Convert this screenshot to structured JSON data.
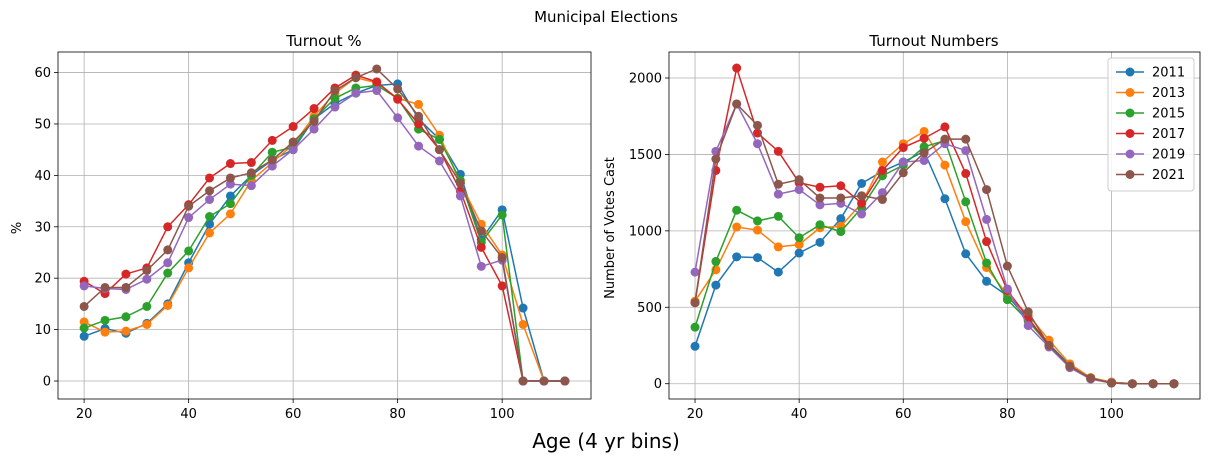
{
  "figure": {
    "suptitle": "Municipal Elections",
    "supxlabel": "Age (4 yr bins)"
  },
  "series_colors": [
    "#1f77b4",
    "#ff7f0e",
    "#2ca02c",
    "#d62728",
    "#9467bd",
    "#8c564b"
  ],
  "chart_data": [
    {
      "type": "line",
      "title": "Turnout %",
      "xlabel": "",
      "ylabel": "%",
      "xlim": [
        15,
        117
      ],
      "ylim": [
        -3.5,
        64
      ],
      "xticks": [
        20,
        40,
        60,
        80,
        100
      ],
      "yticks": [
        0,
        10,
        20,
        30,
        40,
        50,
        60
      ],
      "grid": true,
      "markers": "circle",
      "legend": "none",
      "x": [
        20,
        24,
        28,
        32,
        36,
        40,
        44,
        48,
        52,
        56,
        60,
        64,
        68,
        72,
        76,
        80,
        84,
        88,
        92,
        96,
        100,
        104,
        108,
        112
      ],
      "series": [
        {
          "name": "2011",
          "values": [
            8.7,
            10.2,
            9.3,
            11.2,
            15.0,
            23.0,
            30.5,
            36.0,
            40.0,
            43.0,
            45.0,
            51.0,
            54.0,
            56.0,
            57.5,
            57.8,
            51.0,
            47.0,
            40.2,
            27.5,
            33.3,
            14.2,
            0,
            0
          ]
        },
        {
          "name": "2013",
          "values": [
            11.5,
            9.5,
            9.7,
            11.0,
            14.7,
            22.0,
            28.8,
            32.5,
            39.0,
            42.5,
            46.0,
            51.5,
            56.0,
            59.0,
            58.0,
            55.0,
            53.8,
            47.8,
            38.5,
            30.5,
            24.5,
            11.0,
            0,
            0
          ]
        },
        {
          "name": "2015",
          "values": [
            10.3,
            11.8,
            12.5,
            14.5,
            21.0,
            25.3,
            32.0,
            34.5,
            40.0,
            44.5,
            45.5,
            51.0,
            55.0,
            57.0,
            57.5,
            55.0,
            49.0,
            47.0,
            39.0,
            27.0,
            32.3,
            0,
            0,
            0
          ]
        },
        {
          "name": "2017",
          "values": [
            19.4,
            17.0,
            20.8,
            22.0,
            30.0,
            34.3,
            39.5,
            42.3,
            42.5,
            46.8,
            49.5,
            53.0,
            57.0,
            59.5,
            58.2,
            54.8,
            50.0,
            45.0,
            37.0,
            26.0,
            18.5,
            0,
            0,
            0
          ]
        },
        {
          "name": "2019",
          "values": [
            18.5,
            18.0,
            17.8,
            19.8,
            23.0,
            31.8,
            35.3,
            38.3,
            38.0,
            41.8,
            45.0,
            49.0,
            53.3,
            56.0,
            56.5,
            51.2,
            45.7,
            42.8,
            36.0,
            22.3,
            23.5,
            0,
            0,
            0
          ]
        },
        {
          "name": "2021",
          "values": [
            14.5,
            18.2,
            18.2,
            21.5,
            25.5,
            34.0,
            37.0,
            39.5,
            40.5,
            43.0,
            46.5,
            50.5,
            56.5,
            59.0,
            60.7,
            56.8,
            51.5,
            45.0,
            38.5,
            29.2,
            24.0,
            0,
            0,
            0
          ]
        }
      ]
    },
    {
      "type": "line",
      "title": "Turnout Numbers",
      "xlabel": "",
      "ylabel": "Number of Votes Cast",
      "xlim": [
        15,
        117
      ],
      "ylim": [
        -100,
        2170
      ],
      "xticks": [
        20,
        40,
        60,
        80,
        100
      ],
      "yticks": [
        0,
        500,
        1000,
        1500,
        2000
      ],
      "grid": true,
      "markers": "circle",
      "legend": "top-right",
      "x": [
        20,
        24,
        28,
        32,
        36,
        40,
        44,
        48,
        52,
        56,
        60,
        64,
        68,
        72,
        76,
        80,
        84,
        88,
        92,
        96,
        100,
        104,
        108,
        112
      ],
      "series": [
        {
          "name": "2011",
          "values": [
            245,
            645,
            830,
            825,
            730,
            855,
            925,
            1080,
            1310,
            1390,
            1450,
            1520,
            1210,
            850,
            670,
            575,
            420,
            260,
            120,
            40,
            10,
            0,
            0,
            0
          ]
        },
        {
          "name": "2013",
          "values": [
            540,
            745,
            1025,
            1005,
            895,
            910,
            1020,
            1030,
            1180,
            1450,
            1570,
            1650,
            1430,
            1060,
            760,
            580,
            450,
            285,
            130,
            40,
            10,
            0,
            0,
            0
          ]
        },
        {
          "name": "2015",
          "values": [
            370,
            800,
            1135,
            1065,
            1095,
            955,
            1040,
            995,
            1150,
            1360,
            1430,
            1550,
            1590,
            1190,
            790,
            550,
            410,
            250,
            115,
            35,
            5,
            0,
            0,
            0
          ]
        },
        {
          "name": "2017",
          "values": [
            530,
            1395,
            2065,
            1640,
            1520,
            1315,
            1285,
            1295,
            1180,
            1395,
            1545,
            1605,
            1680,
            1375,
            930,
            610,
            430,
            250,
            110,
            35,
            5,
            0,
            0,
            0
          ]
        },
        {
          "name": "2019",
          "values": [
            730,
            1520,
            1830,
            1570,
            1240,
            1270,
            1170,
            1180,
            1110,
            1250,
            1450,
            1460,
            1570,
            1525,
            1075,
            620,
            380,
            240,
            105,
            30,
            5,
            0,
            0,
            0
          ]
        },
        {
          "name": "2021",
          "values": [
            530,
            1470,
            1830,
            1690,
            1305,
            1335,
            1215,
            1215,
            1230,
            1205,
            1380,
            1510,
            1600,
            1600,
            1270,
            770,
            470,
            250,
            115,
            35,
            5,
            0,
            0,
            0
          ]
        }
      ]
    }
  ]
}
